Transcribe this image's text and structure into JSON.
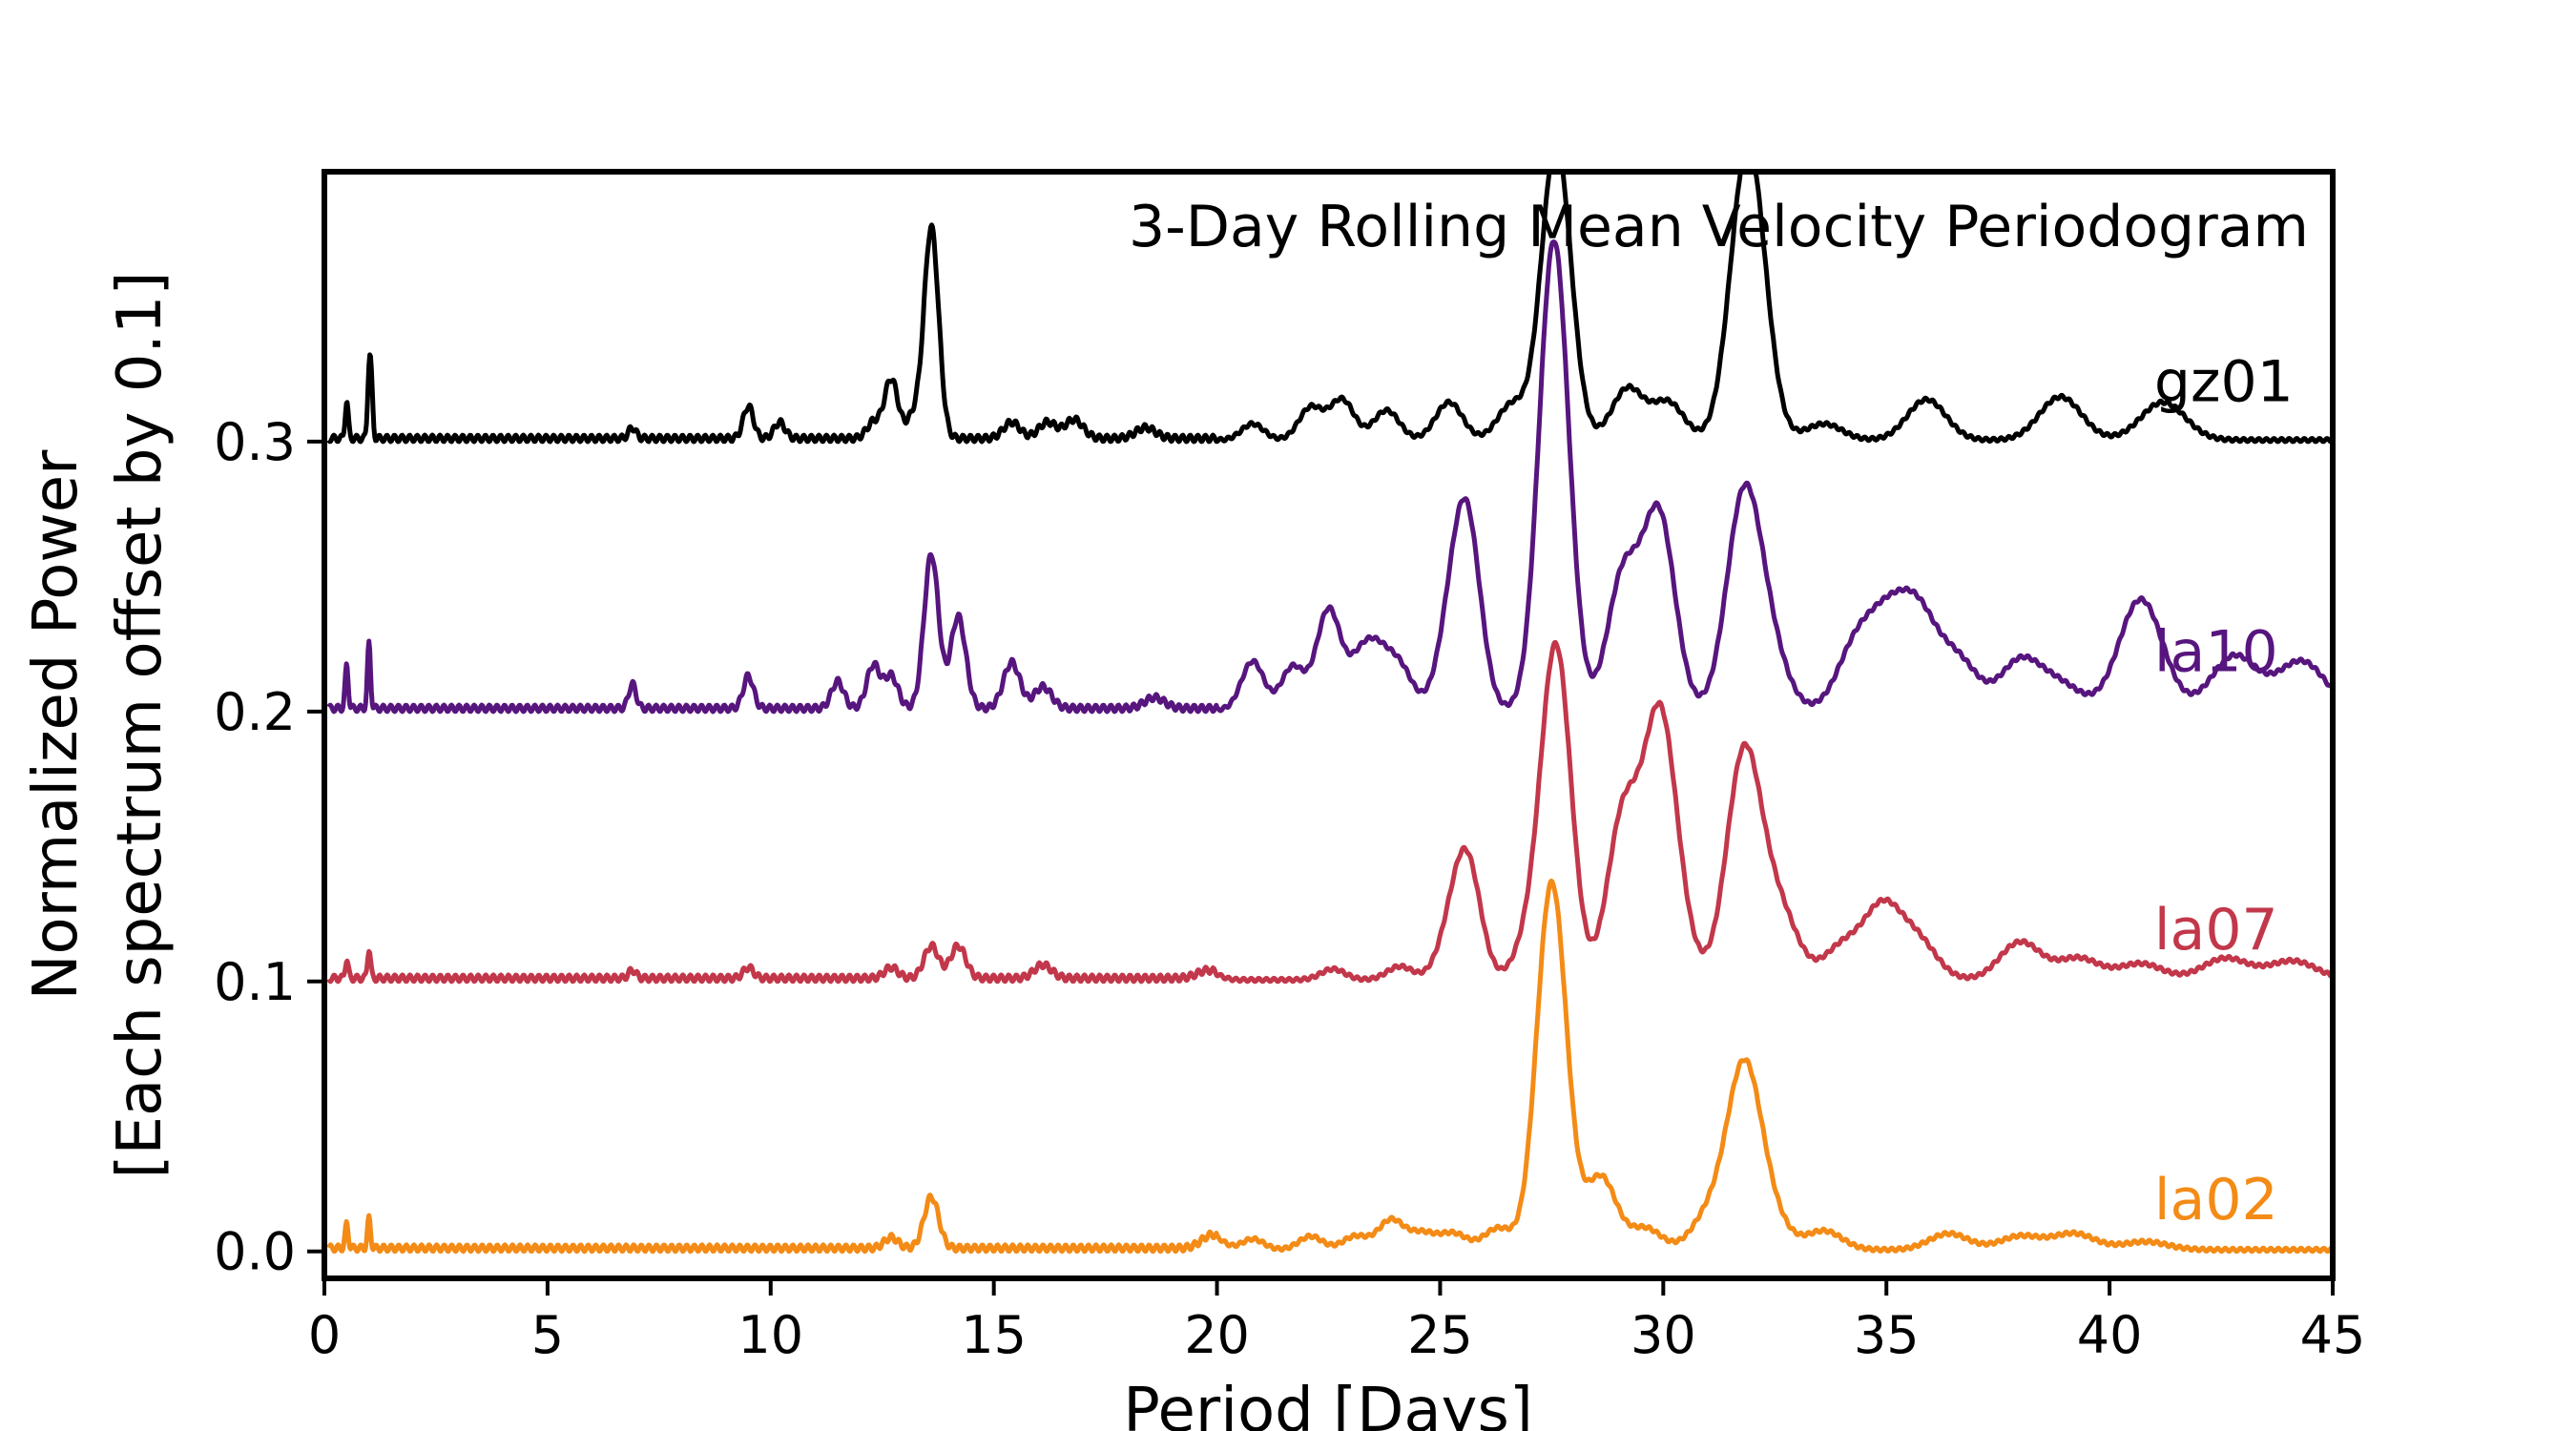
{
  "chart_data": {
    "type": "line",
    "title": "3-Day Rolling Mean Velocity Periodogram",
    "xlabel": "Period [Days]",
    "ylabel_lines": [
      "Normalized Power",
      "[Each spectrum offset by 0.1]"
    ],
    "xlim": [
      0,
      45
    ],
    "ylim": [
      -0.01,
      0.4
    ],
    "xticks": [
      0,
      5,
      10,
      15,
      20,
      25,
      30,
      35,
      40,
      45
    ],
    "yticks": [
      0.0,
      0.1,
      0.2,
      0.3
    ],
    "ytick_labels": [
      "0.0",
      "0.1",
      "0.2",
      "0.3"
    ],
    "grid": false,
    "legend": "none",
    "series": [
      {
        "name": "gz01",
        "color": "#000000",
        "offset": 0.3,
        "peaks": [
          [
            0.5,
            0.014
          ],
          [
            1.0,
            0.022
          ],
          [
            1.05,
            0.018
          ],
          [
            6.9,
            0.004
          ],
          [
            9.5,
            0.012
          ],
          [
            10.2,
            0.006
          ],
          [
            12.3,
            0.006
          ],
          [
            12.7,
            0.022
          ],
          [
            13.2,
            0.008
          ],
          [
            13.6,
            0.078
          ],
          [
            15.4,
            0.006
          ],
          [
            16.2,
            0.006
          ],
          [
            16.8,
            0.007
          ],
          [
            18.4,
            0.004
          ],
          [
            20.8,
            0.006
          ],
          [
            22.1,
            0.012
          ],
          [
            22.8,
            0.015
          ],
          [
            23.8,
            0.011
          ],
          [
            25.2,
            0.014
          ],
          [
            26.6,
            0.013
          ],
          [
            27.6,
            0.11
          ],
          [
            29.2,
            0.019
          ],
          [
            30.1,
            0.014
          ],
          [
            31.9,
            0.11
          ],
          [
            33.6,
            0.006
          ],
          [
            35.9,
            0.015
          ],
          [
            38.9,
            0.016
          ],
          [
            41.2,
            0.014
          ]
        ],
        "label_x": 41.0,
        "label_y": 0.315
      },
      {
        "name": "la10",
        "color": "#57157e",
        "offset": 0.2,
        "peaks": [
          [
            0.5,
            0.016
          ],
          [
            1.0,
            0.024
          ],
          [
            6.9,
            0.009
          ],
          [
            9.5,
            0.012
          ],
          [
            11.5,
            0.01
          ],
          [
            12.3,
            0.016
          ],
          [
            12.7,
            0.012
          ],
          [
            13.6,
            0.057
          ],
          [
            14.2,
            0.034
          ],
          [
            15.4,
            0.017
          ],
          [
            16.1,
            0.008
          ],
          [
            18.6,
            0.004
          ],
          [
            20.8,
            0.018
          ],
          [
            21.7,
            0.016
          ],
          [
            22.5,
            0.037
          ],
          [
            23.2,
            0.016
          ],
          [
            23.6,
            0.017
          ],
          [
            24.1,
            0.015
          ],
          [
            25.2,
            0.022
          ],
          [
            25.6,
            0.068
          ],
          [
            27.55,
            0.174
          ],
          [
            29.1,
            0.049
          ],
          [
            29.9,
            0.072
          ],
          [
            31.8,
            0.077
          ],
          [
            32.4,
            0.02
          ],
          [
            34.3,
            0.022
          ],
          [
            35.0,
            0.028
          ],
          [
            35.7,
            0.033
          ],
          [
            36.6,
            0.018
          ],
          [
            38.0,
            0.018
          ],
          [
            38.9,
            0.009
          ],
          [
            40.7,
            0.041
          ],
          [
            42.8,
            0.02
          ],
          [
            44.3,
            0.018
          ]
        ],
        "label_x": 41.0,
        "label_y": 0.215
      },
      {
        "name": "la07",
        "color": "#c2374a",
        "offset": 0.1,
        "peaks": [
          [
            0.5,
            0.007
          ],
          [
            1.0,
            0.011
          ],
          [
            6.9,
            0.003
          ],
          [
            9.5,
            0.004
          ],
          [
            12.7,
            0.004
          ],
          [
            13.6,
            0.012
          ],
          [
            14.2,
            0.012
          ],
          [
            16.1,
            0.005
          ],
          [
            19.8,
            0.003
          ],
          [
            22.6,
            0.004
          ],
          [
            24.1,
            0.005
          ],
          [
            25.2,
            0.012
          ],
          [
            25.6,
            0.043
          ],
          [
            27.0,
            0.014
          ],
          [
            27.6,
            0.122
          ],
          [
            29.1,
            0.06
          ],
          [
            29.9,
            0.09
          ],
          [
            30.3,
            0.015
          ],
          [
            31.8,
            0.082
          ],
          [
            32.4,
            0.012
          ],
          [
            32.7,
            0.016
          ],
          [
            34.0,
            0.012
          ],
          [
            34.9,
            0.026
          ],
          [
            35.7,
            0.014
          ],
          [
            38.0,
            0.014
          ],
          [
            39.3,
            0.008
          ],
          [
            40.7,
            0.006
          ],
          [
            42.6,
            0.008
          ],
          [
            44.1,
            0.007
          ]
        ],
        "label_x": 41.0,
        "label_y": 0.112
      },
      {
        "name": "la02",
        "color": "#f38b16",
        "offset": 0.0,
        "peaks": [
          [
            0.5,
            0.009
          ],
          [
            1.0,
            0.011
          ],
          [
            12.7,
            0.004
          ],
          [
            13.6,
            0.019
          ],
          [
            19.9,
            0.005
          ],
          [
            20.8,
            0.004
          ],
          [
            22.1,
            0.005
          ],
          [
            23.1,
            0.005
          ],
          [
            23.9,
            0.011
          ],
          [
            24.6,
            0.006
          ],
          [
            25.3,
            0.006
          ],
          [
            26.3,
            0.008
          ],
          [
            27.5,
            0.136
          ],
          [
            28.6,
            0.027
          ],
          [
            29.6,
            0.008
          ],
          [
            31.0,
            0.012
          ],
          [
            31.8,
            0.066
          ],
          [
            32.4,
            0.011
          ],
          [
            33.6,
            0.007
          ],
          [
            36.4,
            0.006
          ],
          [
            38.0,
            0.005
          ],
          [
            39.2,
            0.006
          ],
          [
            40.8,
            0.003
          ]
        ],
        "label_x": 41.0,
        "label_y": 0.012
      }
    ]
  }
}
